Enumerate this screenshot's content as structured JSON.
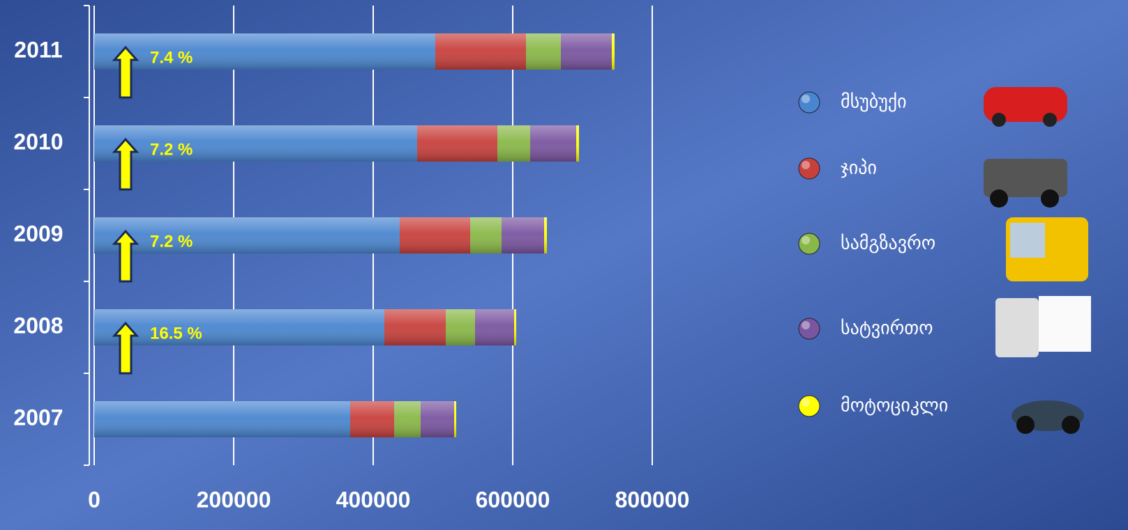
{
  "chart_data": {
    "type": "stacked-barh",
    "categories": [
      "2007",
      "2008",
      "2009",
      "2010",
      "2011"
    ],
    "series": [
      {
        "name": "მსუბუქი",
        "color": "#4a86d0",
        "values": [
          367000,
          416000,
          438000,
          463000,
          489000
        ]
      },
      {
        "name": "ჯიპი",
        "color": "#c8403c",
        "values": [
          63000,
          88000,
          101000,
          115000,
          130000
        ]
      },
      {
        "name": "სამგზავრო",
        "color": "#8ab848",
        "values": [
          38000,
          42000,
          45000,
          47000,
          50000
        ]
      },
      {
        "name": "სატვირთო",
        "color": "#7a55a0",
        "values": [
          48000,
          56000,
          61000,
          66000,
          73000
        ]
      },
      {
        "name": "მოტოციკლი",
        "color": "#ffff00",
        "values": [
          3000,
          3000,
          4000,
          4000,
          4000
        ]
      }
    ],
    "growth_labels": [
      null,
      "16.5 %",
      "7.2 %",
      "7.2 %",
      "7.4 %"
    ],
    "xlim": [
      0,
      800000
    ],
    "xticks": [
      0,
      200000,
      400000,
      600000,
      800000
    ],
    "grid": true
  }
}
